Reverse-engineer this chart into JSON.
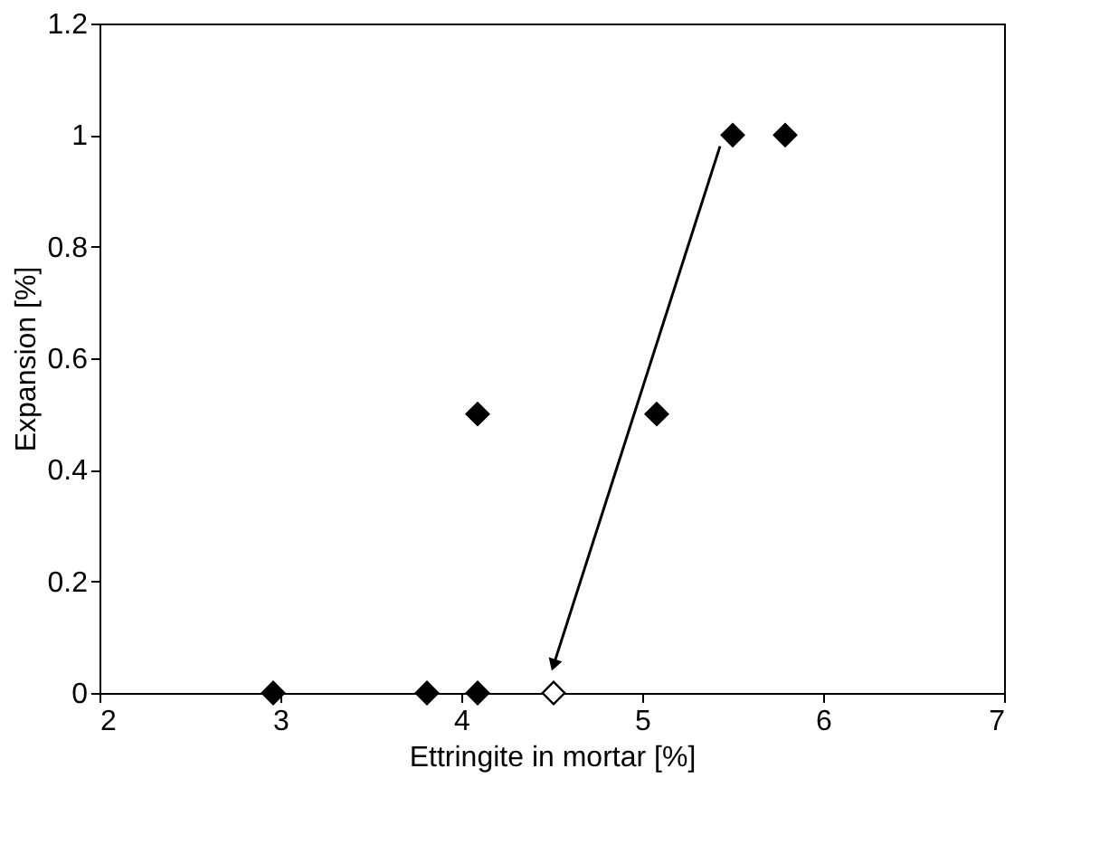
{
  "chart_data": {
    "type": "scatter",
    "xlabel": "Ettringite in mortar [%]",
    "ylabel": "Expansion [%]",
    "xlim": [
      2,
      7
    ],
    "xticks": [
      2,
      3,
      4,
      5,
      6,
      7
    ],
    "ylim": [
      0,
      1.2
    ],
    "yticks": [
      0,
      0.2,
      0.4,
      0.6,
      0.8,
      1,
      1.2
    ],
    "grid": false,
    "series": [
      {
        "marker": "diamond",
        "color": "#000000",
        "x": [
          2.96,
          3.81,
          4.09,
          4.09,
          5.08,
          5.5,
          5.79
        ],
        "values": [
          0,
          0,
          0,
          0.5,
          0.5,
          1,
          1
        ]
      },
      {
        "marker": "diamond",
        "color": "#ffffff",
        "x": [
          4.51
        ],
        "values": [
          0
        ]
      },
      {
        "type": "line",
        "line_style": "solid",
        "color": "#000000",
        "x": [
          5.43,
          4.51
        ],
        "values": [
          0.98,
          0.05
        ]
      }
    ]
  }
}
